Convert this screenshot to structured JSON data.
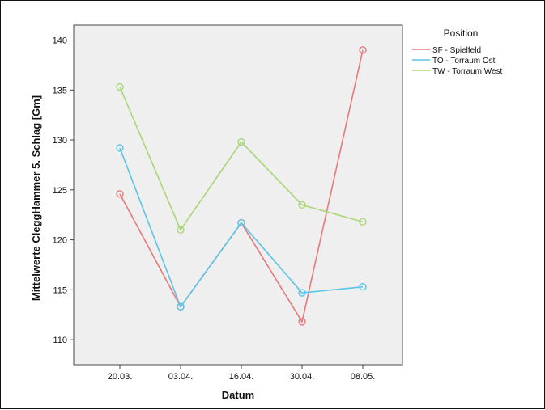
{
  "chart_data": {
    "type": "line",
    "title": "",
    "xlabel": "Datum",
    "ylabel": "Mittelwerte CleggHammer 5. Schlag [Gm]",
    "categories": [
      "20.03.",
      "03.04.",
      "16.04.",
      "30.04.",
      "08.05."
    ],
    "ylim": [
      107.5,
      141.5
    ],
    "yticks": [
      110,
      115,
      120,
      125,
      130,
      135,
      140
    ],
    "grid": false,
    "legend": {
      "title": "Position",
      "placement": "right"
    },
    "series": [
      {
        "name": "SF - Spielfeld",
        "color": "#e8787a",
        "values": [
          124.6,
          113.3,
          121.7,
          111.8,
          139.0
        ]
      },
      {
        "name": "TO - Torraum Ost",
        "color": "#5bc5e8",
        "values": [
          129.2,
          113.3,
          121.7,
          114.7,
          115.3
        ]
      },
      {
        "name": "TW - Torraum West",
        "color": "#a9d676",
        "values": [
          135.3,
          121.0,
          129.8,
          123.5,
          121.8
        ]
      }
    ],
    "plot_background": "#efefef"
  }
}
